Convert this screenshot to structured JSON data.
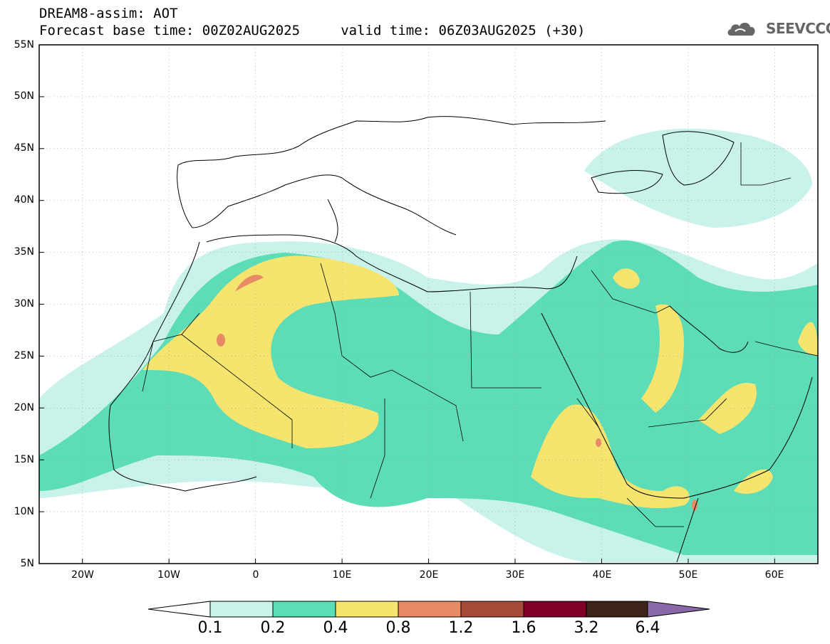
{
  "title": {
    "line1": "DREAM8-assim: AOT",
    "line2": "Forecast base time: 00Z02AUG2025     valid time: 06Z03AUG2025 (+30)"
  },
  "logo": {
    "text": "SEEVCCC"
  },
  "map": {
    "lon_range": [
      -25,
      65
    ],
    "lat_range": [
      5,
      55
    ],
    "y_ticks": [
      "55N",
      "50N",
      "45N",
      "40N",
      "35N",
      "30N",
      "25N",
      "20N",
      "15N",
      "10N",
      "5N"
    ],
    "x_ticks": [
      "20W",
      "10W",
      "0",
      "10E",
      "20E",
      "30E",
      "40E",
      "50E",
      "60E"
    ]
  },
  "colorbar": {
    "levels": [
      "0.1",
      "0.2",
      "0.4",
      "0.8",
      "1.2",
      "1.6",
      "3.2",
      "6.4"
    ],
    "colors": [
      "#c8f2ea",
      "#5ddcb8",
      "#f5e46e",
      "#e88a66",
      "#a84a3a",
      "#800026",
      "#3c2418",
      "#8a68a8"
    ]
  }
}
